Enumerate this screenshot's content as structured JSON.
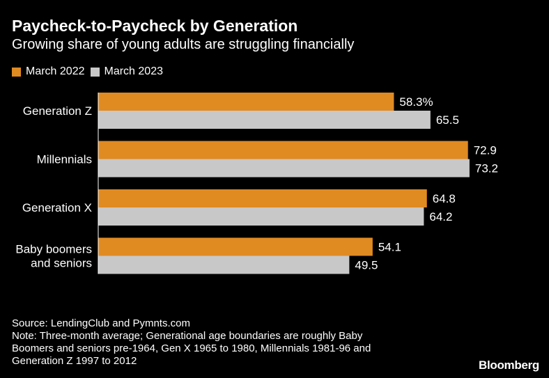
{
  "chart_data": {
    "type": "bar",
    "orientation": "horizontal",
    "title": "Paycheck-to-Paycheck by Generation",
    "subtitle": "Growing share of young adults are struggling financially",
    "categories": [
      [
        "Generation Z"
      ],
      [
        "Millennials"
      ],
      [
        "Generation X"
      ],
      [
        "Baby boomers",
        "and seniors"
      ]
    ],
    "series": [
      {
        "name": "March 2022",
        "color": "#e08a22",
        "values": [
          58.3,
          72.9,
          64.8,
          54.1
        ],
        "labels": [
          "58.3%",
          "72.9",
          "64.8",
          "54.1"
        ]
      },
      {
        "name": "March 2023",
        "color": "#c8c8c8",
        "values": [
          65.5,
          73.2,
          64.2,
          49.5
        ],
        "labels": [
          "65.5",
          "73.2",
          "64.2",
          "49.5"
        ]
      }
    ],
    "xlim": [
      0,
      100
    ],
    "grid": false,
    "legend_position": "top-left"
  },
  "footer": {
    "source": "Source: LendingClub and Pymnts.com",
    "note": "Note: Three-month average; Generational age boundaries are roughly Baby Boomers and seniors pre-1964, Gen X 1965 to 1980, Millennials 1981-96 and Generation Z 1997 to 2012"
  },
  "logo": "Bloomberg"
}
